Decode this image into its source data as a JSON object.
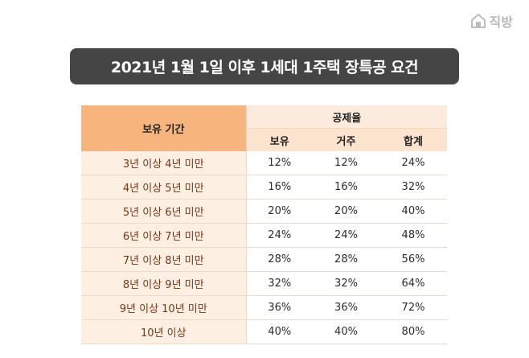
{
  "brand": {
    "name": "직방",
    "icon": "house-icon"
  },
  "title": "2021년 1월 1일 이후 1세대 1주택 장특공 요건",
  "table": {
    "period_header": "보유 기간",
    "group_header": "공제율",
    "sub_headers": [
      "보유",
      "거주",
      "합계"
    ],
    "rows": [
      {
        "period": "3년 이상 4년 미만",
        "hold": "12%",
        "reside": "12%",
        "total": "24%"
      },
      {
        "period": "4년 이상 5년 미만",
        "hold": "16%",
        "reside": "16%",
        "total": "32%"
      },
      {
        "period": "5년 이상 6년 미만",
        "hold": "20%",
        "reside": "20%",
        "total": "40%"
      },
      {
        "period": "6년 이상 7년 미만",
        "hold": "24%",
        "reside": "24%",
        "total": "48%"
      },
      {
        "period": "7년 이상 8년 미만",
        "hold": "28%",
        "reside": "28%",
        "total": "56%"
      },
      {
        "period": "8년 이상 9년 미만",
        "hold": "32%",
        "reside": "32%",
        "total": "64%"
      },
      {
        "period": "9년 이상 10년 미만",
        "hold": "36%",
        "reside": "36%",
        "total": "72%"
      },
      {
        "period": "10년 이상",
        "hold": "40%",
        "reside": "40%",
        "total": "80%"
      }
    ]
  },
  "colors": {
    "header_orange": "#f7b47d",
    "header_light": "#fcebdc",
    "label_bg": "#fdefe2",
    "label_text": "#7a3413",
    "title_bg": "#454545"
  }
}
